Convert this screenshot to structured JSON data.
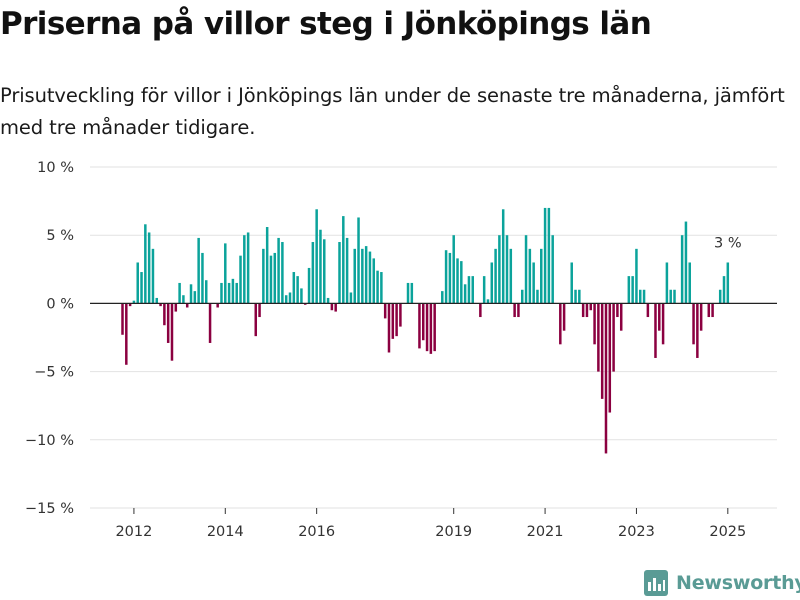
{
  "chart_data": {
    "type": "bar",
    "title": "Priserna på villor steg i Jönköpings län",
    "subtitle": "Prisutveckling för villor i Jönköpings län under de senaste tre månaderna, jämfört med tre månader tidigare.",
    "x_start": "2011-10",
    "x_ticks": [
      "2012",
      "2014",
      "2016",
      "2019",
      "2021",
      "2023",
      "2025"
    ],
    "y_ticks": [
      10,
      5,
      0,
      -5,
      -10,
      -15
    ],
    "y_tick_labels": [
      "10 %",
      "5 %",
      "0 %",
      "−5 %",
      "−10 %",
      "−15 %"
    ],
    "ylim": [
      -15,
      10
    ],
    "grid": true,
    "legend": "none",
    "positive_color": "#0ba39b",
    "negative_color": "#8b0040",
    "annotation": {
      "text": "3 %"
    },
    "values": [
      -2.3,
      -4.5,
      -0.2,
      0.2,
      3.0,
      2.3,
      5.8,
      5.2,
      4.0,
      0.4,
      -0.2,
      -1.6,
      -2.9,
      -4.2,
      -0.6,
      1.5,
      0.6,
      -0.3,
      1.4,
      0.9,
      4.8,
      3.7,
      1.7,
      -2.9,
      0.0,
      -0.3,
      1.5,
      4.4,
      1.5,
      1.8,
      1.5,
      3.5,
      5.0,
      5.2,
      0.0,
      -2.4,
      -1.0,
      4.0,
      5.6,
      3.5,
      3.7,
      4.8,
      4.5,
      0.6,
      0.8,
      2.3,
      2.0,
      1.1,
      -0.1,
      2.6,
      4.5,
      6.9,
      5.4,
      4.7,
      0.4,
      -0.5,
      -0.6,
      4.5,
      6.4,
      4.8,
      0.8,
      4.0,
      6.3,
      4.0,
      4.2,
      3.8,
      3.3,
      2.4,
      2.3,
      -1.1,
      -3.6,
      -2.6,
      -2.4,
      -1.7,
      0.0,
      1.5,
      1.5,
      0.0,
      -3.3,
      -2.7,
      -3.5,
      -3.7,
      -3.5,
      0.0,
      0.9,
      3.9,
      3.7,
      5.0,
      3.3,
      3.1,
      1.4,
      2.0,
      2.0,
      0.0,
      -1.0,
      2.0,
      0.3,
      3.0,
      4.0,
      5.0,
      6.9,
      5.0,
      4.0,
      -1.0,
      -1.0,
      1.0,
      5.0,
      4.0,
      3.0,
      1.0,
      4.0,
      7.0,
      7.0,
      5.0,
      0.0,
      -3.0,
      -2.0,
      0.0,
      3.0,
      1.0,
      1.0,
      -1.0,
      -1.0,
      -0.5,
      -3.0,
      -5.0,
      -7.0,
      -11.0,
      -8.0,
      -5.0,
      -1.0,
      -2.0,
      0.0,
      2.0,
      2.0,
      4.0,
      1.0,
      1.0,
      -1.0,
      0.0,
      -4.0,
      -2.0,
      -3.0,
      3.0,
      1.0,
      1.0,
      0.0,
      5.0,
      6.0,
      3.0,
      -3.0,
      -4.0,
      -2.0,
      0.0,
      -1.0,
      -1.0,
      0.0,
      1.0,
      2.0,
      3.0
    ]
  },
  "brand": {
    "name": "Newsworthy",
    "color": "#5a9b95",
    "icon": "bar-chart-logo-icon"
  }
}
